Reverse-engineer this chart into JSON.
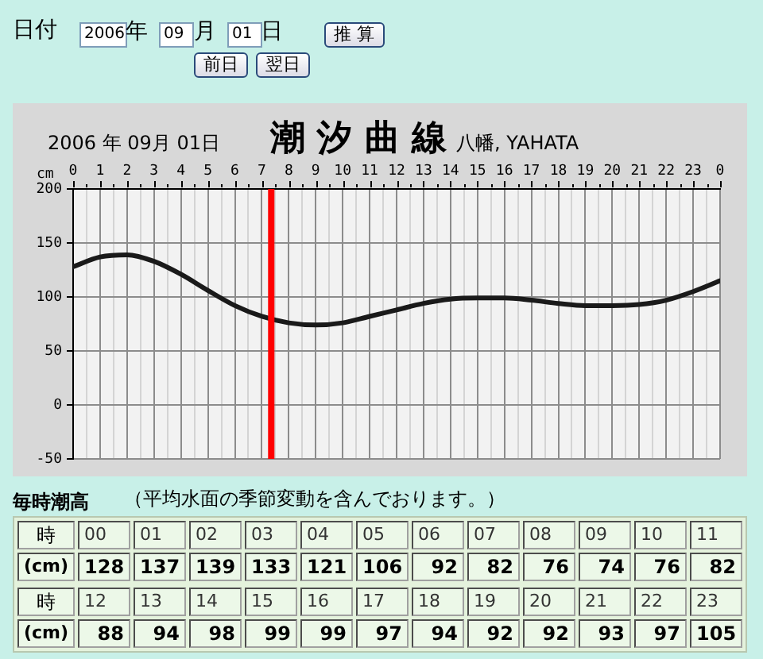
{
  "chart_data": [
    {
      "type": "line",
      "title": "潮 汐 曲 線",
      "subtitle": "2006 年 09月 01日",
      "ylabel": "cm",
      "annotations": [
        "日付",
        "2006",
        "年",
        "09",
        "月",
        "01",
        "日",
        "推 算",
        "前日",
        "翌日",
        "八幡, YAHATA"
      ],
      "x": [
        "2006-09-01T00:00",
        "2006-09-01T01:00",
        "2006-09-01T02:00",
        "2006-09-01T03:00",
        "2006-09-01T04:00",
        "2006-09-01T05:00",
        "2006-09-01T06:00",
        "2006-09-01T07:00",
        "2006-09-01T08:00",
        "2006-09-01T09:00",
        "2006-09-01T10:00",
        "2006-09-01T11:00",
        "2006-09-01T12:00",
        "2006-09-01T13:00",
        "2006-09-01T14:00",
        "2006-09-01T15:00",
        "2006-09-01T16:00",
        "2006-09-01T17:00",
        "2006-09-01T18:00",
        "2006-09-01T19:00",
        "2006-09-01T20:00",
        "2006-09-01T21:00",
        "2006-09-01T22:00",
        "2006-09-01T23:00",
        "2006-09-02T00:00"
      ],
      "series": [
        {
          "color": "#1a1a1a",
          "values": [
            128,
            137,
            139,
            133,
            121,
            106,
            92,
            82,
            76,
            74,
            76,
            82,
            88,
            94,
            98,
            99,
            99,
            97,
            94,
            92,
            92,
            93,
            97,
            105,
            115
          ]
        }
      ],
      "xlim": [
        "2006-09-01T00:00",
        "2006-09-02T00:00"
      ],
      "xticks": [
        {
          "value": "2006-09-01T00:00",
          "label": "0"
        },
        {
          "value": "2006-09-01T00:30",
          "label": null
        },
        {
          "value": "2006-09-01T01:00",
          "label": "1"
        },
        {
          "value": "2006-09-01T01:30",
          "label": null
        },
        {
          "value": "2006-09-01T02:00",
          "label": "2"
        },
        {
          "value": "2006-09-01T02:30",
          "label": null
        },
        {
          "value": "2006-09-01T03:00",
          "label": "3"
        },
        {
          "value": "2006-09-01T03:30",
          "label": null
        },
        {
          "value": "2006-09-01T04:00",
          "label": "4"
        },
        {
          "value": "2006-09-01T04:30",
          "label": null
        },
        {
          "value": "2006-09-01T05:00",
          "label": "5"
        },
        {
          "value": "2006-09-01T05:30",
          "label": null
        },
        {
          "value": "2006-09-01T06:00",
          "label": "6"
        },
        {
          "value": "2006-09-01T06:30",
          "label": null
        },
        {
          "value": "2006-09-01T07:00",
          "label": "7"
        },
        {
          "value": "2006-09-01T07:30",
          "label": null
        },
        {
          "value": "2006-09-01T08:00",
          "label": "8"
        },
        {
          "value": "2006-09-01T08:30",
          "label": null
        },
        {
          "value": "2006-09-01T09:00",
          "label": "9"
        },
        {
          "value": "2006-09-01T09:30",
          "label": null
        },
        {
          "value": "2006-09-01T10:00",
          "label": "10"
        },
        {
          "value": "2006-09-01T10:30",
          "label": null
        },
        {
          "value": "2006-09-01T11:00",
          "label": "11"
        },
        {
          "value": "2006-09-01T11:30",
          "label": null
        },
        {
          "value": "2006-09-01T12:00",
          "label": "12"
        },
        {
          "value": "2006-09-01T12:30",
          "label": null
        },
        {
          "value": "2006-09-01T13:00",
          "label": "13"
        },
        {
          "value": "2006-09-01T13:30",
          "label": null
        },
        {
          "value": "2006-09-01T14:00",
          "label": "14"
        },
        {
          "value": "2006-09-01T14:30",
          "label": null
        },
        {
          "value": "2006-09-01T15:00",
          "label": "15"
        },
        {
          "value": "2006-09-01T15:30",
          "label": null
        },
        {
          "value": "2006-09-01T16:00",
          "label": "16"
        },
        {
          "value": "2006-09-01T16:30",
          "label": null
        },
        {
          "value": "2006-09-01T17:00",
          "label": "17"
        },
        {
          "value": "2006-09-01T17:30",
          "label": null
        },
        {
          "value": "2006-09-01T18:00",
          "label": "18"
        },
        {
          "value": "2006-09-01T18:30",
          "label": null
        },
        {
          "value": "2006-09-01T19:00",
          "label": "19"
        },
        {
          "value": "2006-09-01T19:30",
          "label": null
        },
        {
          "value": "2006-09-01T20:00",
          "label": "20"
        },
        {
          "value": "2006-09-01T20:30",
          "label": null
        },
        {
          "value": "2006-09-01T21:00",
          "label": "21"
        },
        {
          "value": "2006-09-01T21:30",
          "label": null
        },
        {
          "value": "2006-09-01T22:00",
          "label": "22"
        },
        {
          "value": "2006-09-01T22:30",
          "label": null
        },
        {
          "value": "2006-09-01T23:00",
          "label": "23"
        },
        {
          "value": "2006-09-01T23:30",
          "label": null
        },
        {
          "value": "2006-09-02T00:00",
          "label": "0"
        }
      ],
      "ylim": [
        -50,
        200
      ],
      "yticks": [
        -50,
        0,
        50,
        100,
        150,
        200
      ],
      "ref_lines": [
        {
          "axis": "x",
          "value": "2006-09-01T07:21",
          "color": "#ff0000"
        }
      ],
      "grid": true,
      "marker": "none",
      "line_style": "solid"
    },
    {
      "type": "heatmap",
      "title": "毎時潮高",
      "subtitle": "（平均水面の季節変動を含んでおります。）",
      "xlabel": "時",
      "categories": [
        "00",
        "01",
        "02",
        "03",
        "04",
        "05",
        "06",
        "07",
        "08",
        "09",
        "10",
        "11"
      ],
      "y_categories": [
        "(cm)"
      ],
      "cells": [
        [
          128,
          137,
          139,
          133,
          121,
          106,
          92,
          82,
          76,
          74,
          76,
          82
        ]
      ],
      "data_labels": true
    },
    {
      "type": "heatmap",
      "xlabel": "時",
      "categories": [
        "12",
        "13",
        "14",
        "15",
        "16",
        "17",
        "18",
        "19",
        "20",
        "21",
        "22",
        "23"
      ],
      "y_categories": [
        "(cm)"
      ],
      "cells": [
        [
          88,
          94,
          98,
          99,
          99,
          97,
          94,
          92,
          92,
          93,
          97,
          105
        ]
      ],
      "data_labels": true
    }
  ]
}
